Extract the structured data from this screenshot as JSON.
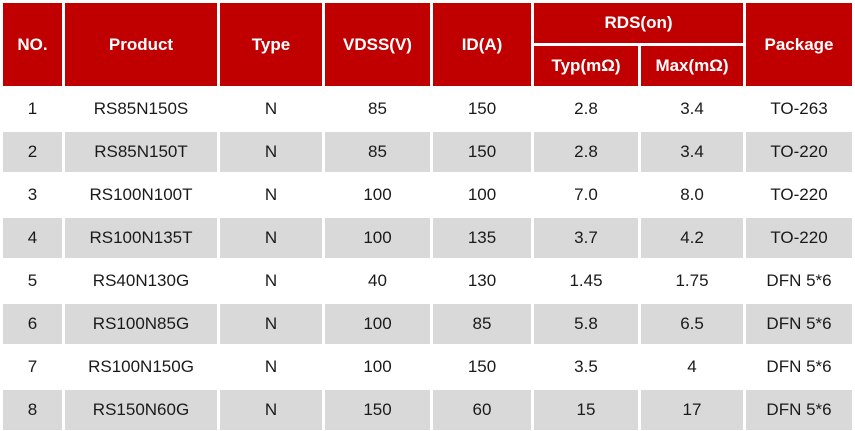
{
  "chart_data": {
    "type": "table",
    "header": {
      "no": "NO.",
      "product": "Product",
      "type": "Type",
      "vdss": "VDSS(V)",
      "id": "ID(A)",
      "rds_group": "RDS(on)",
      "rds_typ": "Typ(mΩ)",
      "rds_max": "Max(mΩ)",
      "package": "Package"
    },
    "rows": [
      [
        "1",
        "RS85N150S",
        "N",
        "85",
        "150",
        "2.8",
        "3.4",
        "TO-263"
      ],
      [
        "2",
        "RS85N150T",
        "N",
        "85",
        "150",
        "2.8",
        "3.4",
        "TO-220"
      ],
      [
        "3",
        "RS100N100T",
        "N",
        "100",
        "100",
        "7.0",
        "8.0",
        "TO-220"
      ],
      [
        "4",
        "RS100N135T",
        "N",
        "100",
        "135",
        "3.7",
        "4.2",
        "TO-220"
      ],
      [
        "5",
        "RS40N130G",
        "N",
        "40",
        "130",
        "1.45",
        "1.75",
        "DFN 5*6"
      ],
      [
        "6",
        "RS100N85G",
        "N",
        "100",
        "85",
        "5.8",
        "6.5",
        "DFN 5*6"
      ],
      [
        "7",
        "RS100N150G",
        "N",
        "100",
        "150",
        "3.5",
        "4",
        "DFN 5*6"
      ],
      [
        "8",
        "RS150N60G",
        "N",
        "150",
        "60",
        "15",
        "17",
        "DFN 5*6"
      ]
    ],
    "colors": {
      "header_bg": "#c00000",
      "header_text": "#ffffff",
      "row_bg": "#ffffff",
      "row_alt_bg": "#d9d9d9",
      "body_text": "#1a1a1a"
    },
    "layout_hints": {
      "grid": "white 3px cell spacing",
      "zebra_striping": "even rows gray"
    }
  }
}
